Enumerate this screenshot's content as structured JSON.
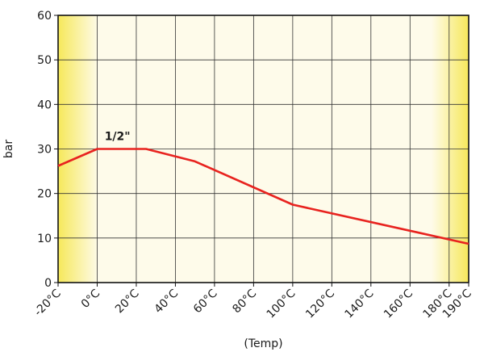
{
  "chart_data": {
    "type": "line",
    "xlabel": "(Temp)",
    "ylabel": "bar",
    "xlim": [
      -20,
      190
    ],
    "ylim": [
      0,
      60
    ],
    "x_tick_values": [
      -20,
      0,
      20,
      40,
      60,
      80,
      100,
      120,
      140,
      160,
      180,
      190
    ],
    "x_tick_labels": [
      "-20°C",
      "0°C",
      "20°C",
      "40°C",
      "60°C",
      "80°C",
      "100°C",
      "120°C",
      "140°C",
      "160°C",
      "180°C",
      "190°C"
    ],
    "y_ticks": [
      0,
      10,
      20,
      30,
      40,
      50,
      60
    ],
    "grid": true,
    "series": [
      {
        "name": "1/2\"",
        "color": "#e8231f",
        "x": [
          -20,
          0,
          25,
          50,
          100,
          190
        ],
        "y": [
          26.2,
          30,
          30,
          27.2,
          17.5,
          8.7
        ]
      }
    ],
    "colors": {
      "plot_background": "#fefbea",
      "edge_band": "#f6e85a",
      "grid": "#333333",
      "frame": "#111111"
    }
  }
}
